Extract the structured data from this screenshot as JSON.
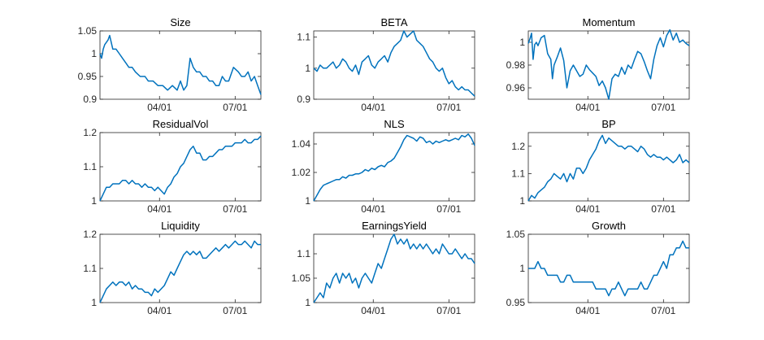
{
  "figure": {
    "line_color": "#0072BD",
    "axis_color": "#262626"
  },
  "chart_data": [
    {
      "type": "line",
      "title": "Size",
      "ylim": [
        0.9,
        1.05
      ],
      "yticks": [
        "0.9",
        "0.95",
        "1",
        "1.05"
      ],
      "ytick_values": [
        0.9,
        0.95,
        1.0,
        1.05
      ],
      "xticks": [
        "04/01",
        "07/01"
      ],
      "xtick_values": [
        0.37,
        0.84
      ],
      "x": [
        0,
        0.01,
        0.02,
        0.03,
        0.05,
        0.06,
        0.08,
        0.1,
        0.12,
        0.14,
        0.16,
        0.18,
        0.2,
        0.22,
        0.25,
        0.28,
        0.3,
        0.33,
        0.36,
        0.39,
        0.42,
        0.45,
        0.48,
        0.5,
        0.52,
        0.54,
        0.56,
        0.58,
        0.6,
        0.62,
        0.64,
        0.66,
        0.68,
        0.7,
        0.72,
        0.74,
        0.76,
        0.78,
        0.8,
        0.83,
        0.86,
        0.88,
        0.9,
        0.92,
        0.94,
        0.96,
        0.98,
        1.0
      ],
      "series": [
        {
          "name": "Size",
          "values": [
            1.0,
            0.99,
            1.01,
            1.02,
            1.03,
            1.04,
            1.01,
            1.01,
            1.0,
            0.99,
            0.98,
            0.97,
            0.97,
            0.96,
            0.95,
            0.95,
            0.94,
            0.94,
            0.93,
            0.93,
            0.92,
            0.93,
            0.92,
            0.94,
            0.92,
            0.93,
            0.99,
            0.97,
            0.96,
            0.96,
            0.95,
            0.95,
            0.94,
            0.94,
            0.93,
            0.93,
            0.95,
            0.94,
            0.94,
            0.97,
            0.96,
            0.95,
            0.95,
            0.96,
            0.94,
            0.95,
            0.93,
            0.91
          ]
        }
      ]
    },
    {
      "type": "line",
      "title": "BETA",
      "ylim": [
        0.9,
        1.12
      ],
      "yticks": [
        "0.9",
        "1",
        "1.1"
      ],
      "ytick_values": [
        0.9,
        1.0,
        1.1
      ],
      "xticks": [
        "04/01",
        "07/01"
      ],
      "xtick_values": [
        0.37,
        0.84
      ],
      "x": [
        0,
        0.02,
        0.04,
        0.06,
        0.08,
        0.1,
        0.12,
        0.14,
        0.16,
        0.18,
        0.2,
        0.22,
        0.24,
        0.26,
        0.28,
        0.3,
        0.32,
        0.34,
        0.36,
        0.38,
        0.4,
        0.42,
        0.44,
        0.46,
        0.48,
        0.5,
        0.52,
        0.54,
        0.56,
        0.58,
        0.6,
        0.62,
        0.64,
        0.66,
        0.68,
        0.7,
        0.72,
        0.74,
        0.76,
        0.78,
        0.8,
        0.82,
        0.84,
        0.86,
        0.88,
        0.9,
        0.92,
        0.94,
        0.96,
        0.98,
        1.0
      ],
      "series": [
        {
          "name": "BETA",
          "values": [
            1.0,
            0.99,
            1.01,
            1.0,
            1.0,
            1.01,
            1.02,
            1.0,
            1.01,
            1.03,
            1.02,
            1.0,
            0.99,
            1.01,
            0.98,
            1.02,
            1.03,
            1.04,
            1.01,
            1.0,
            1.02,
            1.03,
            1.04,
            1.02,
            1.05,
            1.07,
            1.08,
            1.09,
            1.12,
            1.1,
            1.11,
            1.12,
            1.09,
            1.08,
            1.07,
            1.05,
            1.03,
            1.02,
            1.0,
            0.99,
            1.0,
            0.97,
            0.95,
            0.96,
            0.94,
            0.93,
            0.94,
            0.93,
            0.93,
            0.92,
            0.91
          ]
        }
      ]
    },
    {
      "type": "line",
      "title": "Momentum",
      "ylim": [
        0.95,
        1.01
      ],
      "yticks": [
        "0.96",
        "0.98",
        "1"
      ],
      "ytick_values": [
        0.96,
        0.98,
        1.0
      ],
      "xticks": [
        "04/01",
        "07/01"
      ],
      "xtick_values": [
        0.37,
        0.84
      ],
      "x": [
        0,
        0.01,
        0.02,
        0.03,
        0.04,
        0.05,
        0.06,
        0.08,
        0.1,
        0.12,
        0.14,
        0.15,
        0.16,
        0.18,
        0.2,
        0.22,
        0.24,
        0.26,
        0.28,
        0.3,
        0.32,
        0.34,
        0.36,
        0.38,
        0.4,
        0.42,
        0.44,
        0.46,
        0.48,
        0.5,
        0.52,
        0.54,
        0.56,
        0.58,
        0.6,
        0.62,
        0.64,
        0.66,
        0.68,
        0.7,
        0.72,
        0.74,
        0.76,
        0.78,
        0.8,
        0.82,
        0.84,
        0.86,
        0.88,
        0.9,
        0.92,
        0.94,
        0.96,
        0.98,
        1.0
      ],
      "series": [
        {
          "name": "Momentum",
          "values": [
            0.999,
            1.003,
            1.008,
            0.985,
            0.998,
            1.0,
            0.997,
            1.004,
            1.006,
            0.99,
            0.985,
            0.968,
            0.98,
            0.987,
            0.995,
            0.984,
            0.96,
            0.975,
            0.98,
            0.975,
            0.97,
            0.972,
            0.98,
            0.976,
            0.973,
            0.97,
            0.962,
            0.966,
            0.96,
            0.95,
            0.968,
            0.972,
            0.97,
            0.978,
            0.972,
            0.98,
            0.977,
            0.985,
            0.992,
            0.99,
            0.983,
            0.975,
            0.968,
            0.985,
            0.997,
            1.004,
            0.996,
            1.006,
            1.011,
            1.002,
            1.008,
            1.0,
            1.002,
            0.999,
            0.997
          ]
        }
      ]
    },
    {
      "type": "line",
      "title": "ResidualVol",
      "ylim": [
        1.0,
        1.2
      ],
      "yticks": [
        "1",
        "1.1",
        "1.2"
      ],
      "ytick_values": [
        1.0,
        1.1,
        1.2
      ],
      "xticks": [
        "04/01",
        "07/01"
      ],
      "xtick_values": [
        0.37,
        0.84
      ],
      "x": [
        0,
        0.02,
        0.04,
        0.06,
        0.08,
        0.1,
        0.12,
        0.14,
        0.16,
        0.18,
        0.2,
        0.22,
        0.24,
        0.26,
        0.28,
        0.3,
        0.32,
        0.34,
        0.36,
        0.38,
        0.4,
        0.42,
        0.44,
        0.46,
        0.48,
        0.5,
        0.52,
        0.54,
        0.56,
        0.58,
        0.6,
        0.62,
        0.64,
        0.66,
        0.68,
        0.7,
        0.72,
        0.74,
        0.76,
        0.78,
        0.8,
        0.82,
        0.84,
        0.86,
        0.88,
        0.9,
        0.92,
        0.94,
        0.96,
        0.98,
        1.0
      ],
      "series": [
        {
          "name": "ResidualVol",
          "values": [
            1.0,
            1.02,
            1.04,
            1.04,
            1.05,
            1.05,
            1.05,
            1.06,
            1.06,
            1.05,
            1.06,
            1.05,
            1.05,
            1.04,
            1.05,
            1.04,
            1.04,
            1.03,
            1.04,
            1.03,
            1.02,
            1.04,
            1.05,
            1.07,
            1.08,
            1.1,
            1.11,
            1.13,
            1.15,
            1.16,
            1.14,
            1.14,
            1.12,
            1.12,
            1.13,
            1.13,
            1.14,
            1.15,
            1.15,
            1.16,
            1.16,
            1.16,
            1.17,
            1.17,
            1.17,
            1.18,
            1.17,
            1.17,
            1.18,
            1.18,
            1.19
          ]
        }
      ]
    },
    {
      "type": "line",
      "title": "NLS",
      "ylim": [
        1.0,
        1.048
      ],
      "yticks": [
        "1",
        "1.02",
        "1.04"
      ],
      "ytick_values": [
        1.0,
        1.02,
        1.04
      ],
      "xticks": [
        "04/01",
        "07/01"
      ],
      "xtick_values": [
        0.37,
        0.84
      ],
      "x": [
        0,
        0.02,
        0.04,
        0.06,
        0.08,
        0.1,
        0.12,
        0.14,
        0.16,
        0.18,
        0.2,
        0.22,
        0.24,
        0.26,
        0.28,
        0.3,
        0.32,
        0.34,
        0.36,
        0.38,
        0.4,
        0.42,
        0.44,
        0.46,
        0.48,
        0.5,
        0.52,
        0.54,
        0.56,
        0.58,
        0.6,
        0.62,
        0.64,
        0.66,
        0.68,
        0.7,
        0.72,
        0.74,
        0.76,
        0.78,
        0.8,
        0.82,
        0.84,
        0.86,
        0.88,
        0.9,
        0.92,
        0.94,
        0.96,
        0.98,
        1.0
      ],
      "series": [
        {
          "name": "NLS",
          "values": [
            1.0,
            1.004,
            1.008,
            1.011,
            1.012,
            1.013,
            1.014,
            1.015,
            1.015,
            1.017,
            1.016,
            1.018,
            1.018,
            1.019,
            1.019,
            1.02,
            1.022,
            1.021,
            1.023,
            1.022,
            1.024,
            1.025,
            1.024,
            1.027,
            1.028,
            1.03,
            1.034,
            1.038,
            1.043,
            1.046,
            1.045,
            1.044,
            1.042,
            1.045,
            1.044,
            1.041,
            1.042,
            1.04,
            1.042,
            1.041,
            1.042,
            1.043,
            1.042,
            1.043,
            1.044,
            1.043,
            1.046,
            1.045,
            1.047,
            1.044,
            1.039
          ]
        }
      ]
    },
    {
      "type": "line",
      "title": "BP",
      "ylim": [
        1.0,
        1.25
      ],
      "yticks": [
        "1",
        "1.1",
        "1.2"
      ],
      "ytick_values": [
        1.0,
        1.1,
        1.2
      ],
      "xticks": [
        "04/01",
        "07/01"
      ],
      "xtick_values": [
        0.37,
        0.84
      ],
      "x": [
        0,
        0.02,
        0.04,
        0.06,
        0.08,
        0.1,
        0.12,
        0.14,
        0.16,
        0.18,
        0.2,
        0.22,
        0.24,
        0.26,
        0.28,
        0.3,
        0.32,
        0.34,
        0.36,
        0.38,
        0.4,
        0.42,
        0.44,
        0.46,
        0.48,
        0.5,
        0.52,
        0.54,
        0.56,
        0.58,
        0.6,
        0.62,
        0.64,
        0.66,
        0.68,
        0.7,
        0.72,
        0.74,
        0.76,
        0.78,
        0.8,
        0.82,
        0.84,
        0.86,
        0.88,
        0.9,
        0.92,
        0.94,
        0.96,
        0.98,
        1.0
      ],
      "series": [
        {
          "name": "BP",
          "values": [
            1.0,
            1.02,
            1.01,
            1.03,
            1.04,
            1.05,
            1.07,
            1.08,
            1.1,
            1.09,
            1.08,
            1.1,
            1.07,
            1.1,
            1.08,
            1.12,
            1.12,
            1.1,
            1.12,
            1.15,
            1.17,
            1.19,
            1.22,
            1.24,
            1.21,
            1.23,
            1.22,
            1.21,
            1.2,
            1.2,
            1.19,
            1.2,
            1.2,
            1.19,
            1.18,
            1.2,
            1.19,
            1.17,
            1.16,
            1.17,
            1.16,
            1.16,
            1.15,
            1.16,
            1.15,
            1.14,
            1.15,
            1.17,
            1.14,
            1.15,
            1.14
          ]
        }
      ]
    },
    {
      "type": "line",
      "title": "Liquidity",
      "ylim": [
        1.0,
        1.2
      ],
      "yticks": [
        "1",
        "1.1",
        "1.2"
      ],
      "ytick_values": [
        1.0,
        1.1,
        1.2
      ],
      "xticks": [
        "04/01",
        "07/01"
      ],
      "xtick_values": [
        0.37,
        0.84
      ],
      "x": [
        0,
        0.02,
        0.04,
        0.06,
        0.08,
        0.1,
        0.12,
        0.14,
        0.16,
        0.18,
        0.2,
        0.22,
        0.24,
        0.26,
        0.28,
        0.3,
        0.32,
        0.34,
        0.36,
        0.38,
        0.4,
        0.42,
        0.44,
        0.46,
        0.48,
        0.5,
        0.52,
        0.54,
        0.56,
        0.58,
        0.6,
        0.62,
        0.64,
        0.66,
        0.68,
        0.7,
        0.72,
        0.74,
        0.76,
        0.78,
        0.8,
        0.82,
        0.84,
        0.86,
        0.88,
        0.9,
        0.92,
        0.94,
        0.96,
        0.98,
        1.0
      ],
      "series": [
        {
          "name": "Liquidity",
          "values": [
            1.0,
            1.02,
            1.04,
            1.05,
            1.06,
            1.05,
            1.06,
            1.06,
            1.05,
            1.06,
            1.04,
            1.05,
            1.04,
            1.04,
            1.03,
            1.03,
            1.02,
            1.04,
            1.03,
            1.04,
            1.05,
            1.07,
            1.09,
            1.08,
            1.1,
            1.12,
            1.14,
            1.15,
            1.14,
            1.15,
            1.14,
            1.15,
            1.13,
            1.13,
            1.14,
            1.15,
            1.16,
            1.15,
            1.16,
            1.17,
            1.16,
            1.17,
            1.18,
            1.17,
            1.17,
            1.18,
            1.17,
            1.16,
            1.18,
            1.17,
            1.17
          ]
        }
      ]
    },
    {
      "type": "line",
      "title": "EarningsYield",
      "ylim": [
        1.0,
        1.14
      ],
      "yticks": [
        "1",
        "1.05",
        "1.1"
      ],
      "ytick_values": [
        1.0,
        1.05,
        1.1
      ],
      "xticks": [
        "04/01",
        "07/01"
      ],
      "xtick_values": [
        0.37,
        0.84
      ],
      "x": [
        0,
        0.02,
        0.04,
        0.06,
        0.08,
        0.1,
        0.12,
        0.14,
        0.16,
        0.18,
        0.2,
        0.22,
        0.24,
        0.26,
        0.28,
        0.3,
        0.32,
        0.34,
        0.36,
        0.38,
        0.4,
        0.42,
        0.44,
        0.46,
        0.48,
        0.5,
        0.52,
        0.54,
        0.56,
        0.58,
        0.6,
        0.62,
        0.64,
        0.66,
        0.68,
        0.7,
        0.72,
        0.74,
        0.76,
        0.78,
        0.8,
        0.82,
        0.84,
        0.86,
        0.88,
        0.9,
        0.92,
        0.94,
        0.96,
        0.98,
        1.0
      ],
      "series": [
        {
          "name": "EarningsYield",
          "values": [
            1.0,
            1.01,
            1.02,
            1.01,
            1.04,
            1.03,
            1.05,
            1.06,
            1.04,
            1.06,
            1.05,
            1.06,
            1.04,
            1.05,
            1.03,
            1.05,
            1.06,
            1.05,
            1.04,
            1.06,
            1.08,
            1.07,
            1.09,
            1.11,
            1.13,
            1.14,
            1.12,
            1.13,
            1.12,
            1.13,
            1.11,
            1.12,
            1.11,
            1.12,
            1.11,
            1.12,
            1.11,
            1.1,
            1.11,
            1.1,
            1.12,
            1.11,
            1.1,
            1.1,
            1.11,
            1.1,
            1.09,
            1.1,
            1.09,
            1.09,
            1.08
          ]
        }
      ]
    },
    {
      "type": "line",
      "title": "Growth",
      "ylim": [
        0.95,
        1.05
      ],
      "yticks": [
        "0.95",
        "1",
        "1.05"
      ],
      "ytick_values": [
        0.95,
        1.0,
        1.05
      ],
      "xticks": [
        "04/01",
        "07/01"
      ],
      "xtick_values": [
        0.37,
        0.84
      ],
      "x": [
        0,
        0.02,
        0.04,
        0.06,
        0.08,
        0.1,
        0.12,
        0.14,
        0.16,
        0.18,
        0.2,
        0.22,
        0.24,
        0.26,
        0.28,
        0.3,
        0.32,
        0.34,
        0.36,
        0.38,
        0.4,
        0.42,
        0.44,
        0.46,
        0.48,
        0.5,
        0.52,
        0.54,
        0.56,
        0.58,
        0.6,
        0.62,
        0.64,
        0.66,
        0.68,
        0.7,
        0.72,
        0.74,
        0.76,
        0.78,
        0.8,
        0.82,
        0.84,
        0.86,
        0.88,
        0.9,
        0.92,
        0.94,
        0.96,
        0.98,
        1.0
      ],
      "series": [
        {
          "name": "Growth",
          "values": [
            1.0,
            1.0,
            1.0,
            1.01,
            1.0,
            1.0,
            0.99,
            0.99,
            0.99,
            0.99,
            0.98,
            0.98,
            0.99,
            0.99,
            0.98,
            0.98,
            0.98,
            0.98,
            0.98,
            0.98,
            0.98,
            0.97,
            0.97,
            0.97,
            0.97,
            0.96,
            0.97,
            0.97,
            0.98,
            0.97,
            0.96,
            0.97,
            0.97,
            0.97,
            0.97,
            0.98,
            0.97,
            0.97,
            0.98,
            0.99,
            0.99,
            1.0,
            1.01,
            1.0,
            1.02,
            1.02,
            1.03,
            1.03,
            1.04,
            1.03,
            1.03
          ]
        }
      ]
    }
  ]
}
